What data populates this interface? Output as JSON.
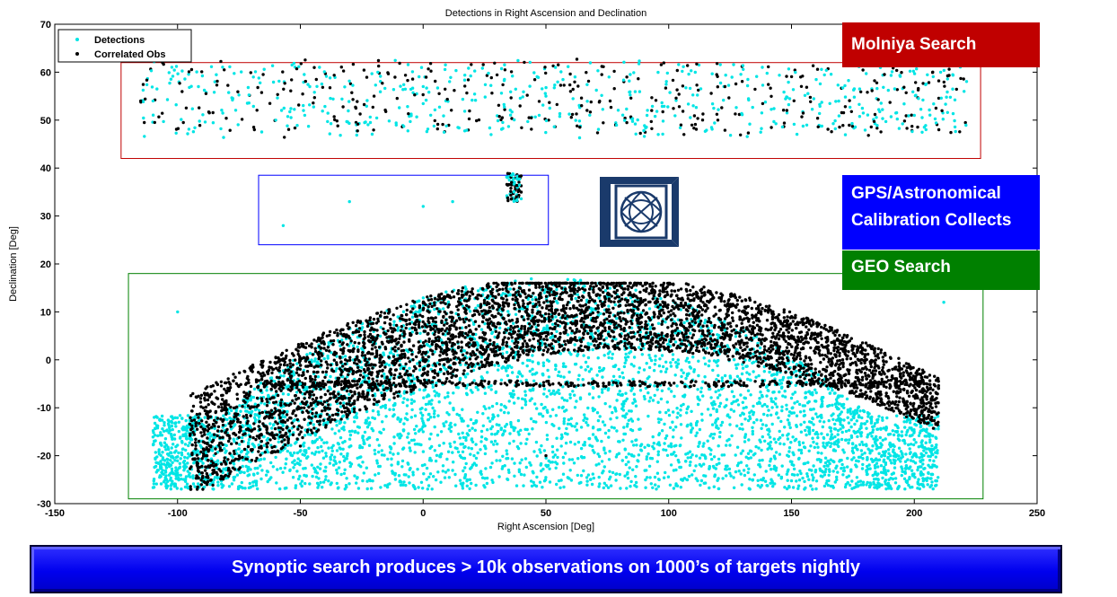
{
  "chart_data": {
    "type": "scatter",
    "title": "Detections in Right Ascension and Declination",
    "xlabel": "Right Ascension [Deg]",
    "ylabel": "Declination [Deg]",
    "xlim": [
      -150,
      250
    ],
    "ylim": [
      -30,
      70
    ],
    "xticks": [
      "-150",
      "-100",
      "-50",
      "0",
      "50",
      "100",
      "150",
      "200",
      "250"
    ],
    "yticks": [
      "-30",
      "-20",
      "-10",
      "0",
      "10",
      "20",
      "30",
      "40",
      "50",
      "60",
      "70"
    ],
    "legend_position": "top-left",
    "series": [
      {
        "name": "Detections",
        "color": "#00e5e5",
        "marker": "dot",
        "sample_points": [
          [
            -110,
            54
          ],
          [
            -60,
            50
          ],
          [
            0,
            57
          ],
          [
            50,
            55
          ],
          [
            110,
            53
          ],
          [
            200,
            51
          ],
          [
            -57,
            28
          ],
          [
            -30,
            33
          ],
          [
            0,
            32
          ],
          [
            12,
            33
          ],
          [
            37,
            35
          ],
          [
            -100,
            10
          ],
          [
            -50,
            -5
          ],
          [
            0,
            -15
          ],
          [
            50,
            -22
          ],
          [
            100,
            -18
          ],
          [
            150,
            -8
          ],
          [
            212,
            12
          ]
        ]
      },
      {
        "name": "Correlated Obs",
        "color": "#000000",
        "marker": "dot",
        "sample_points": [
          [
            -115,
            54
          ],
          [
            -20,
            55
          ],
          [
            60,
            56
          ],
          [
            120,
            50
          ],
          [
            210,
            48
          ],
          [
            36,
            37
          ],
          [
            38,
            34
          ],
          [
            -65,
            -5
          ],
          [
            0,
            -5
          ],
          [
            100,
            10
          ],
          [
            150,
            5
          ],
          [
            205,
            -5
          ],
          [
            -50,
            -18
          ],
          [
            50,
            -20
          ]
        ]
      }
    ],
    "regions": [
      {
        "name": "Molniya Search",
        "color": "#c00000",
        "ra": [
          -123,
          227
        ],
        "dec": [
          42,
          62
        ]
      },
      {
        "name": "GPS/Astronomical Calibration Collects",
        "color": "#0000ff",
        "ra": [
          -67,
          51
        ],
        "dec": [
          24,
          38.5
        ]
      },
      {
        "name": "GEO Search",
        "color": "#008000",
        "ra": [
          -120,
          228
        ],
        "dec": [
          -29,
          18
        ]
      }
    ]
  },
  "legend": {
    "detections": "Detections",
    "correlated": "Correlated Obs"
  },
  "callouts": {
    "molniya": "Molniya Search",
    "gps_line1": "GPS/Astronomical",
    "gps_line2": "Calibration Collects",
    "geo": "GEO Search"
  },
  "banner": {
    "text": "Synoptic search produces > 10k observations on 1000’s of targets nightly"
  },
  "logo": {
    "icon": "lincoln-lab-logo",
    "color": "#1a3a6b"
  }
}
